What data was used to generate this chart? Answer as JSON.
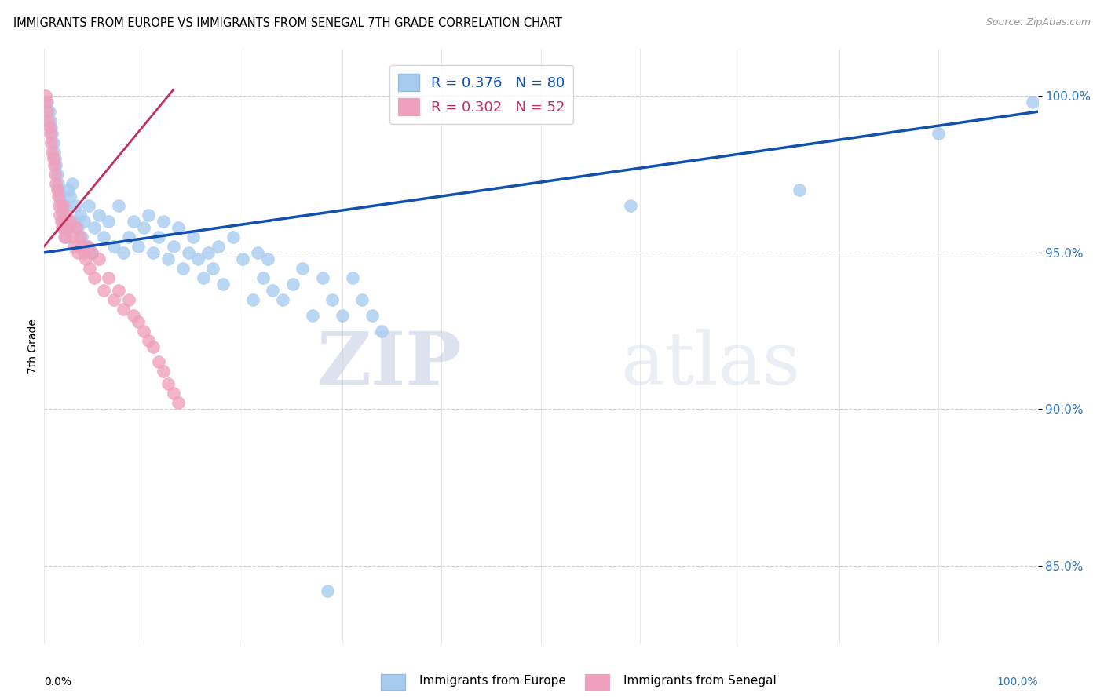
{
  "title": "IMMIGRANTS FROM EUROPE VS IMMIGRANTS FROM SENEGAL 7TH GRADE CORRELATION CHART",
  "source": "Source: ZipAtlas.com",
  "ylabel": "7th Grade",
  "y_tick_vals": [
    85.0,
    90.0,
    95.0,
    100.0
  ],
  "y_tick_labels": [
    "85.0%",
    "90.0%",
    "95.0%",
    "100.0%"
  ],
  "x_lim": [
    0.0,
    1.0
  ],
  "y_lim": [
    82.5,
    101.5
  ],
  "legend_blue_label": "R = 0.376   N = 80",
  "legend_pink_label": "R = 0.302   N = 52",
  "blue_color": "#A8CCF0",
  "pink_color": "#F0A0BC",
  "line_blue_color": "#1050B0",
  "line_pink_color": "#C03060",
  "watermark_zip": "ZIP",
  "watermark_atlas": "atlas",
  "europe_trendline_x": [
    0.0,
    1.0
  ],
  "europe_trendline_y": [
    95.0,
    99.5
  ],
  "senegal_trendline_x": [
    0.0,
    0.13
  ],
  "senegal_trendline_y": [
    95.2,
    100.2
  ],
  "europe_x": [
    0.003,
    0.005,
    0.006,
    0.007,
    0.008,
    0.009,
    0.01,
    0.011,
    0.012,
    0.013,
    0.014,
    0.015,
    0.016,
    0.017,
    0.018,
    0.019,
    0.02,
    0.021,
    0.022,
    0.024,
    0.026,
    0.028,
    0.03,
    0.032,
    0.034,
    0.036,
    0.038,
    0.04,
    0.042,
    0.045,
    0.048,
    0.05,
    0.055,
    0.06,
    0.065,
    0.07,
    0.075,
    0.08,
    0.085,
    0.09,
    0.095,
    0.1,
    0.105,
    0.11,
    0.115,
    0.12,
    0.125,
    0.13,
    0.135,
    0.14,
    0.145,
    0.15,
    0.155,
    0.16,
    0.165,
    0.17,
    0.175,
    0.18,
    0.19,
    0.2,
    0.21,
    0.215,
    0.22,
    0.225,
    0.23,
    0.24,
    0.25,
    0.26,
    0.27,
    0.28,
    0.29,
    0.3,
    0.31,
    0.32,
    0.33,
    0.34,
    0.59,
    0.76,
    0.9,
    0.995
  ],
  "europe_y": [
    99.8,
    99.5,
    99.2,
    99.0,
    98.8,
    98.5,
    98.2,
    98.0,
    97.8,
    97.5,
    97.2,
    97.0,
    96.8,
    96.5,
    96.3,
    96.0,
    95.8,
    96.5,
    95.5,
    97.0,
    96.8,
    97.2,
    96.0,
    96.5,
    95.8,
    96.2,
    95.5,
    96.0,
    95.2,
    96.5,
    95.0,
    95.8,
    96.2,
    95.5,
    96.0,
    95.2,
    96.5,
    95.0,
    95.5,
    96.0,
    95.2,
    95.8,
    96.2,
    95.0,
    95.5,
    96.0,
    94.8,
    95.2,
    95.8,
    94.5,
    95.0,
    95.5,
    94.8,
    94.2,
    95.0,
    94.5,
    95.2,
    94.0,
    95.5,
    94.8,
    93.5,
    95.0,
    94.2,
    94.8,
    93.8,
    93.5,
    94.0,
    94.5,
    93.0,
    94.2,
    93.5,
    93.0,
    94.2,
    93.5,
    93.0,
    92.5,
    96.5,
    97.0,
    98.8,
    99.8
  ],
  "senegal_x": [
    0.001,
    0.002,
    0.003,
    0.004,
    0.005,
    0.006,
    0.007,
    0.008,
    0.009,
    0.01,
    0.011,
    0.012,
    0.013,
    0.014,
    0.015,
    0.016,
    0.017,
    0.018,
    0.019,
    0.02,
    0.022,
    0.024,
    0.026,
    0.028,
    0.03,
    0.032,
    0.034,
    0.036,
    0.038,
    0.04,
    0.042,
    0.044,
    0.046,
    0.048,
    0.05,
    0.055,
    0.06,
    0.065,
    0.07,
    0.075,
    0.08,
    0.085,
    0.09,
    0.095,
    0.1,
    0.105,
    0.11,
    0.115,
    0.12,
    0.125,
    0.13,
    0.135
  ],
  "senegal_y": [
    100.0,
    99.8,
    99.5,
    99.2,
    99.0,
    98.8,
    98.5,
    98.2,
    98.0,
    97.8,
    97.5,
    97.2,
    97.0,
    96.8,
    96.5,
    96.2,
    96.0,
    95.8,
    96.5,
    95.5,
    96.2,
    95.8,
    96.0,
    95.5,
    95.2,
    95.8,
    95.0,
    95.5,
    95.2,
    95.0,
    94.8,
    95.2,
    94.5,
    95.0,
    94.2,
    94.8,
    93.8,
    94.2,
    93.5,
    93.8,
    93.2,
    93.5,
    93.0,
    92.8,
    92.5,
    92.2,
    92.0,
    91.5,
    91.2,
    90.8,
    90.5,
    90.2
  ],
  "europe_outlier_x": [
    0.285
  ],
  "europe_outlier_y": [
    84.2
  ]
}
